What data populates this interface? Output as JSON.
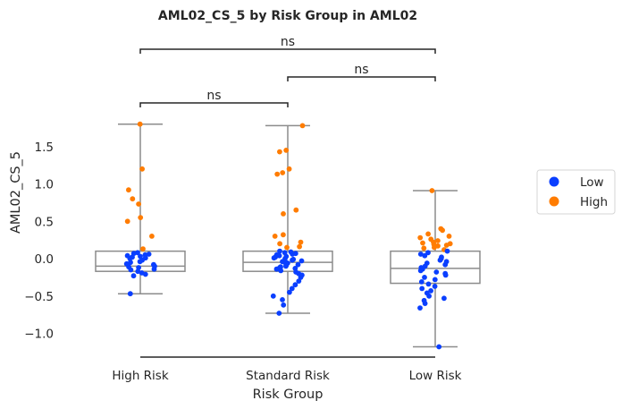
{
  "chart_data": {
    "type": "box+strip",
    "title": "AML02_CS_5 by Risk Group in AML02",
    "xlabel": "Risk Group",
    "ylabel": "AML02_CS_5",
    "categories": [
      "High Risk",
      "Standard Risk",
      "Low Risk"
    ],
    "ylim": [
      -1.3,
      1.85
    ],
    "yticks": [
      -1.0,
      -0.5,
      0.0,
      0.5,
      1.0,
      1.5
    ],
    "ytick_labels": [
      "−1.0",
      "−0.5",
      "0.0",
      "0.5",
      "1.0",
      "1.5"
    ],
    "grid": false,
    "legend": {
      "placement": "right",
      "entries": [
        {
          "name": "Low",
          "color": "#0a3fff"
        },
        {
          "name": "High",
          "color": "#ff7c00"
        }
      ]
    },
    "box_stats": [
      {
        "category": "High Risk",
        "whisker_low": -0.47,
        "q1": -0.17,
        "median": -0.1,
        "q3": 0.1,
        "whisker_high": 1.8
      },
      {
        "category": "Standard Risk",
        "whisker_low": -0.73,
        "q1": -0.17,
        "median": -0.05,
        "q3": 0.1,
        "whisker_high": 1.78
      },
      {
        "category": "Low Risk",
        "whisker_low": -1.18,
        "q1": -0.33,
        "median": -0.13,
        "q3": 0.1,
        "whisker_high": 0.91
      }
    ],
    "points": [
      {
        "category": "High Risk",
        "group": "High",
        "values": [
          1.8,
          1.2,
          0.92,
          0.8,
          0.73,
          0.55,
          0.5,
          0.3,
          0.13
        ]
      },
      {
        "category": "High Risk",
        "group": "Low",
        "values": [
          0.08,
          0.07,
          0.06,
          0.05,
          0.04,
          0.03,
          0.02,
          0.01,
          0.0,
          -0.02,
          -0.04,
          -0.05,
          -0.07,
          -0.08,
          -0.1,
          -0.11,
          -0.12,
          -0.14,
          -0.15,
          -0.17,
          -0.19,
          -0.21,
          -0.23,
          -0.47
        ]
      },
      {
        "category": "Standard Risk",
        "group": "High",
        "values": [
          1.78,
          1.45,
          1.43,
          1.2,
          1.15,
          1.13,
          0.65,
          0.6,
          0.32,
          0.3,
          0.22,
          0.2,
          0.16,
          0.15
        ]
      },
      {
        "category": "Standard Risk",
        "group": "Low",
        "values": [
          0.1,
          0.09,
          0.08,
          0.07,
          0.06,
          0.05,
          0.04,
          0.03,
          0.02,
          0.01,
          0.0,
          -0.01,
          -0.02,
          -0.03,
          -0.04,
          -0.05,
          -0.06,
          -0.07,
          -0.08,
          -0.09,
          -0.1,
          -0.11,
          -0.12,
          -0.13,
          -0.14,
          -0.16,
          -0.18,
          -0.2,
          -0.22,
          -0.25,
          -0.3,
          -0.35,
          -0.4,
          -0.45,
          -0.5,
          -0.55,
          -0.62,
          -0.73
        ]
      },
      {
        "category": "Low Risk",
        "group": "High",
        "values": [
          0.91,
          0.4,
          0.38,
          0.33,
          0.3,
          0.28,
          0.26,
          0.24,
          0.22,
          0.21,
          0.2,
          0.19,
          0.18,
          0.17,
          0.15,
          0.14,
          0.12
        ]
      },
      {
        "category": "Low Risk",
        "group": "Low",
        "values": [
          0.1,
          0.08,
          0.06,
          0.04,
          0.02,
          0.0,
          -0.02,
          -0.04,
          -0.06,
          -0.08,
          -0.1,
          -0.12,
          -0.14,
          -0.16,
          -0.18,
          -0.2,
          -0.22,
          -0.25,
          -0.28,
          -0.31,
          -0.34,
          -0.37,
          -0.4,
          -0.43,
          -0.46,
          -0.5,
          -0.53,
          -0.56,
          -0.6,
          -0.66,
          -1.18
        ]
      }
    ],
    "significance": [
      {
        "from": 0,
        "to": 1,
        "label": "ns"
      },
      {
        "from": 1,
        "to": 2,
        "label": "ns"
      },
      {
        "from": 0,
        "to": 2,
        "label": "ns"
      }
    ]
  }
}
